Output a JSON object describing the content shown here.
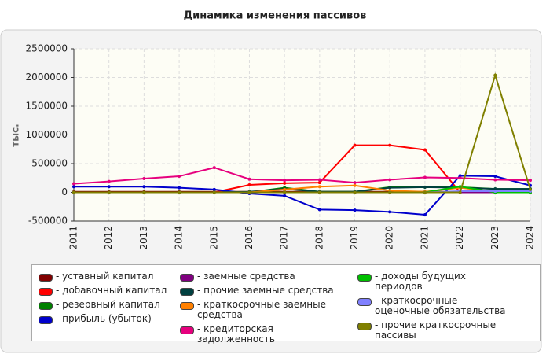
{
  "chart_data": {
    "type": "line",
    "title": "Динамика изменения пассивов",
    "ylabel": "тыс.",
    "x": [
      "2011",
      "2012",
      "2013",
      "2014",
      "2015",
      "2016",
      "2017",
      "2018",
      "2019",
      "2020",
      "2021",
      "2022",
      "2023",
      "2024"
    ],
    "ylim": [
      -500000,
      2500000
    ],
    "yticks": [
      -500000,
      0,
      500000,
      1000000,
      1500000,
      2000000,
      2500000
    ],
    "grid": true,
    "series": [
      {
        "name": "- уставный капитал",
        "color": "#800000",
        "values": [
          10000,
          10000,
          10000,
          10000,
          10000,
          10000,
          10000,
          10000,
          10000,
          10000,
          10000,
          10000,
          10000,
          10000
        ]
      },
      {
        "name": "- добавочный капитал",
        "color": "#ff0000",
        "values": [
          0,
          0,
          0,
          0,
          0,
          130000,
          160000,
          170000,
          820000,
          820000,
          740000,
          0,
          0,
          0
        ]
      },
      {
        "name": "- резервный капитал",
        "color": "#008000",
        "values": [
          0,
          0,
          0,
          0,
          0,
          0,
          80000,
          10000,
          10000,
          90000,
          90000,
          90000,
          60000,
          60000
        ]
      },
      {
        "name": "- прибыль (убыток)",
        "color": "#0000cc",
        "values": [
          100000,
          100000,
          100000,
          80000,
          50000,
          -20000,
          -60000,
          -300000,
          -310000,
          -340000,
          -390000,
          290000,
          280000,
          120000
        ]
      },
      {
        "name": "- заемные средства",
        "color": "#800080",
        "values": [
          0,
          0,
          0,
          0,
          0,
          0,
          0,
          0,
          0,
          0,
          0,
          0,
          0,
          0
        ]
      },
      {
        "name": "- прочие заемные средства",
        "color": "#004040",
        "values": [
          0,
          0,
          0,
          0,
          0,
          10000,
          60000,
          10000,
          10000,
          80000,
          90000,
          80000,
          60000,
          60000
        ]
      },
      {
        "name": "- краткосрочные заемные средства",
        "color": "#ff8000",
        "values": [
          0,
          0,
          0,
          0,
          0,
          0,
          50000,
          100000,
          120000,
          30000,
          10000,
          80000,
          10000,
          10000
        ]
      },
      {
        "name": "- кредиторская задолженность",
        "color": "#e6007e",
        "values": [
          150000,
          190000,
          240000,
          280000,
          430000,
          230000,
          210000,
          220000,
          170000,
          220000,
          260000,
          250000,
          220000,
          210000
        ]
      },
      {
        "name": "- доходы будущих периодов",
        "color": "#00c000",
        "values": [
          0,
          0,
          0,
          0,
          0,
          0,
          0,
          0,
          0,
          0,
          0,
          100000,
          0,
          0
        ]
      },
      {
        "name": "- краткосрочные оценочные обязательства",
        "color": "#8080ff",
        "values": [
          0,
          0,
          0,
          0,
          0,
          0,
          0,
          0,
          0,
          0,
          0,
          20000,
          20000,
          20000
        ]
      },
      {
        "name": "- прочие краткосрочные пассивы",
        "color": "#808000",
        "values": [
          0,
          0,
          0,
          0,
          0,
          0,
          0,
          0,
          0,
          0,
          0,
          0,
          2040000,
          50000
        ]
      }
    ]
  }
}
